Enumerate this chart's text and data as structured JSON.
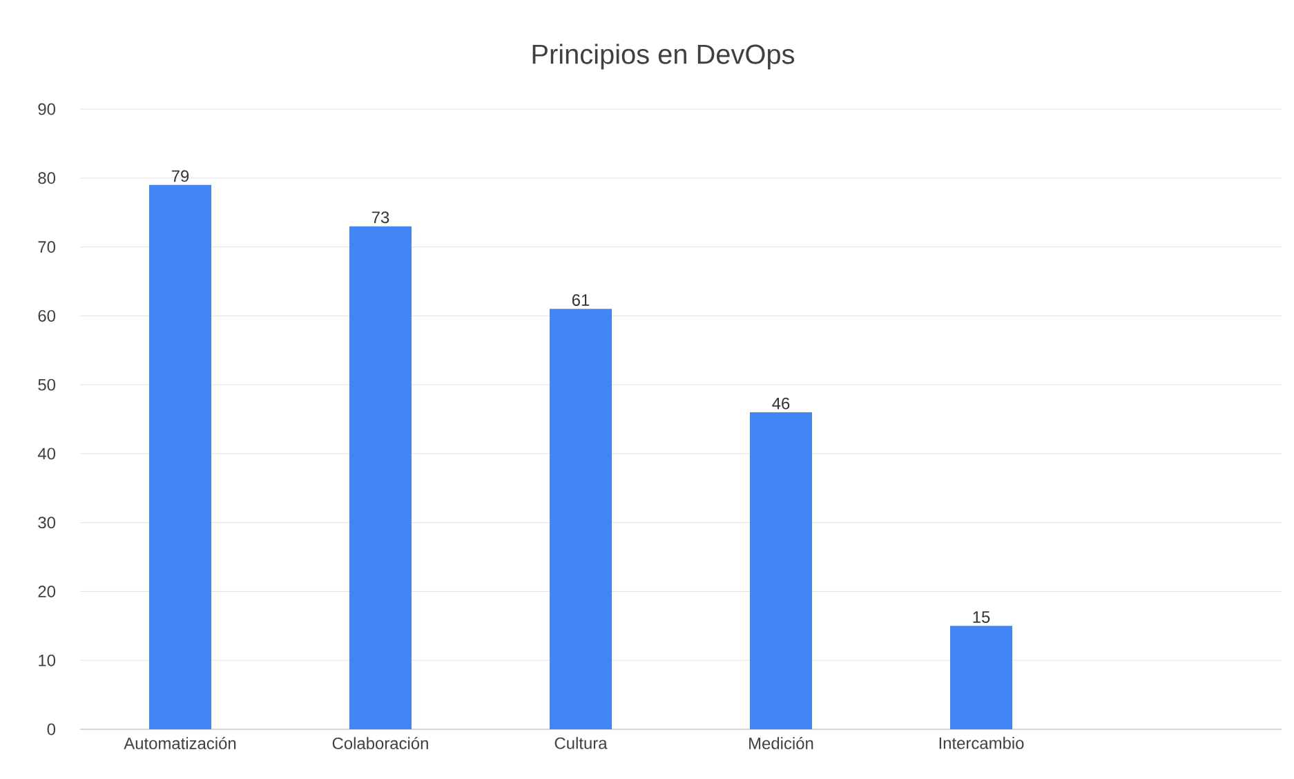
{
  "chart_data": {
    "type": "bar",
    "title": "Principios en DevOps",
    "categories": [
      "Automatización",
      "Colaboración",
      "Cultura",
      "Medición",
      "Intercambio",
      null
    ],
    "values": [
      79,
      73,
      61,
      46,
      15,
      null
    ],
    "color": "#4285f4",
    "ylim": [
      0,
      90
    ],
    "yticks": [
      0,
      10,
      20,
      30,
      40,
      50,
      60,
      70,
      80,
      90
    ],
    "grid": "y",
    "data_labels": true
  }
}
